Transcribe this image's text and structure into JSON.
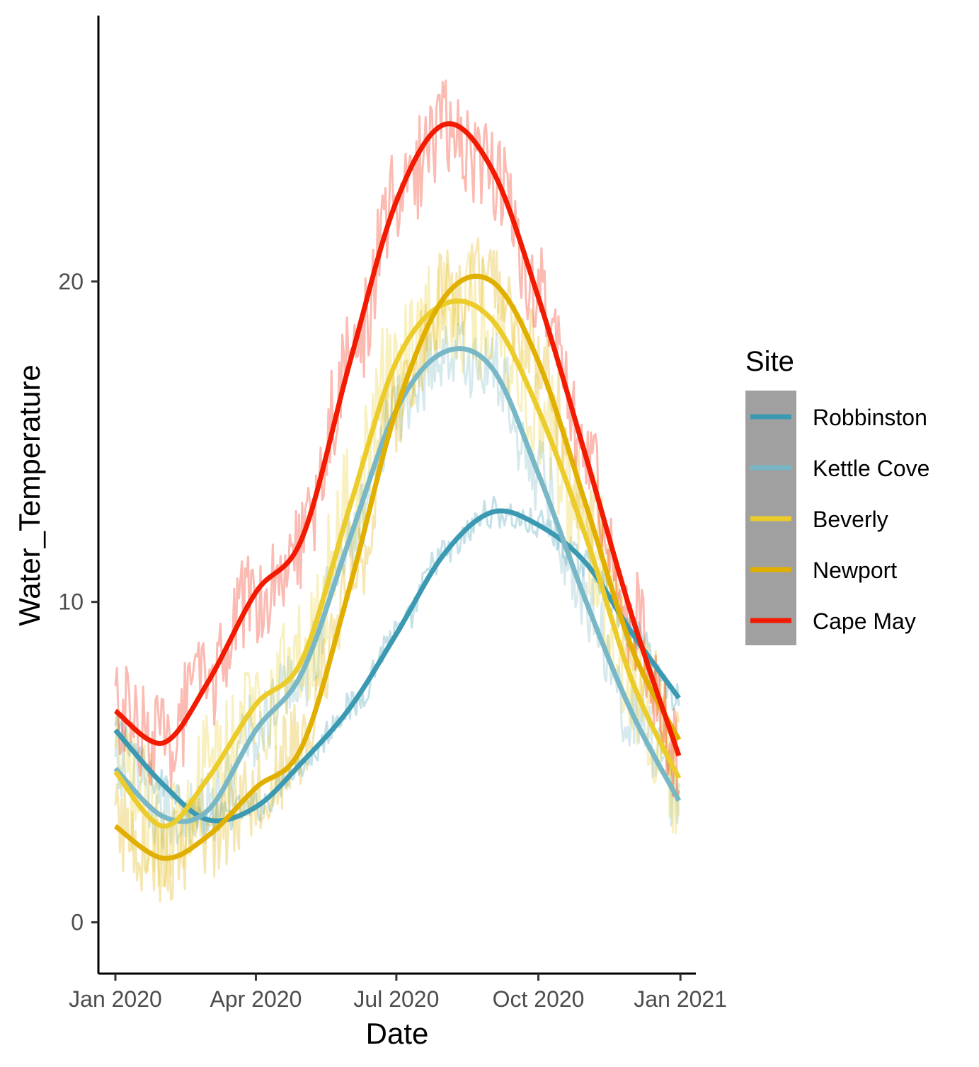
{
  "chart_data": {
    "type": "line",
    "xlabel": "Date",
    "ylabel": "Water_Temperature",
    "x_ticks": [
      "Jan 2020",
      "Apr 2020",
      "Jul 2020",
      "Oct 2020",
      "Jan 2021"
    ],
    "y_ticks": [
      0,
      10,
      20
    ],
    "xlim": [
      "2019-12-21",
      "2021-01-11"
    ],
    "ylim": [
      -1.6,
      28.3
    ],
    "grid": false,
    "legend": {
      "title": "Site",
      "placement": "right",
      "background": "#a0a0a0",
      "entries": [
        "Robbinston",
        "Kettle Cove",
        "Beverly",
        "Newport",
        "Cape May"
      ]
    },
    "x": [
      "2020-01-01",
      "2020-02-01",
      "2020-03-01",
      "2020-04-01",
      "2020-05-01",
      "2020-06-01",
      "2020-07-01",
      "2020-08-01",
      "2020-09-01",
      "2020-10-01",
      "2020-11-01",
      "2020-12-01",
      "2020-12-31"
    ],
    "series": [
      {
        "name": "Robbinston",
        "color": "#3b9ab2",
        "smooth": [
          6.0,
          4.3,
          3.2,
          3.6,
          5.0,
          6.7,
          9.0,
          11.5,
          12.8,
          12.4,
          11.2,
          9.0,
          7.0
        ],
        "raw_range_approx": [
          2.5,
          13.5
        ]
      },
      {
        "name": "Kettle Cove",
        "color": "#78b7c5",
        "smooth": [
          4.8,
          3.3,
          3.5,
          6.0,
          7.8,
          12.0,
          16.0,
          17.8,
          17.3,
          14.0,
          10.0,
          6.5,
          3.8
        ],
        "raw_range_approx": [
          2.3,
          18.0
        ]
      },
      {
        "name": "Beverly",
        "color": "#ebcc2a",
        "smooth": [
          4.7,
          3.0,
          4.5,
          6.8,
          8.2,
          13.0,
          17.5,
          19.3,
          18.8,
          16.0,
          12.0,
          7.5,
          4.5
        ],
        "raw_range_approx": [
          0.0,
          22.0
        ]
      },
      {
        "name": "Newport",
        "color": "#e1af00",
        "smooth": [
          3.0,
          2.0,
          2.7,
          4.2,
          5.5,
          10.5,
          16.0,
          19.5,
          20.0,
          17.5,
          13.0,
          8.5,
          5.7
        ],
        "raw_range_approx": [
          0.5,
          21.5
        ]
      },
      {
        "name": "Cape May",
        "color": "#f21a00",
        "smooth": [
          6.6,
          5.6,
          7.5,
          10.3,
          12.0,
          17.5,
          22.5,
          24.9,
          23.5,
          19.5,
          14.5,
          9.5,
          5.2
        ],
        "raw_range_approx": [
          4.5,
          27.0
        ]
      }
    ]
  }
}
